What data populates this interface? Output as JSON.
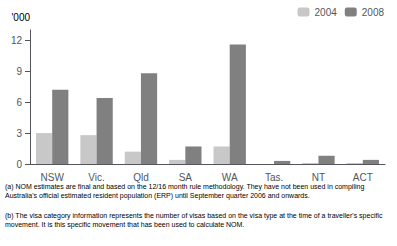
{
  "chart_data": {
    "type": "bar",
    "categories": [
      "NSW",
      "Vic.",
      "Qld",
      "SA",
      "WA",
      "Tas.",
      "NT",
      "ACT"
    ],
    "series": [
      {
        "name": "2004",
        "color": "#c8c8c8",
        "values": [
          3.0,
          2.8,
          1.2,
          0.4,
          1.7,
          0.0,
          0.1,
          0.1
        ]
      },
      {
        "name": "2008",
        "color": "#808080",
        "values": [
          7.2,
          6.4,
          8.8,
          1.7,
          11.6,
          0.3,
          0.8,
          0.4
        ]
      }
    ],
    "ylabel": "'000",
    "ylim": [
      0,
      13
    ],
    "yticks": [
      0,
      3,
      6,
      9,
      12
    ],
    "grid": false,
    "legend": "upper right",
    "annotations": [
      "(a) NOM estimates are final and based on the 12/16 month rule methodology. They have not been used in compiling Australia's official estimated resident population (ERP) until September quarter 2006 and onwards.",
      "(b) The visa category information represents the number of visas based on the visa type at the time of a traveller's specific movement. It is this specific movement that has been used to calculate NOM."
    ]
  }
}
